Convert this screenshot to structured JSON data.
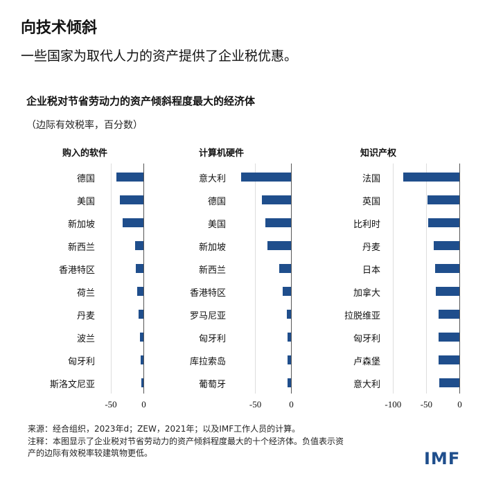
{
  "title": "向技术倾斜",
  "subtitle": "一些国家为取代人力的资产提供了企业税优惠。",
  "chart_data": [
    {
      "type": "bar",
      "orientation": "horizontal",
      "chart_title": "企业税对节省劳动力的资产倾斜程度最大的经济体",
      "unit_label": "（边际有效税率，百分数）",
      "title": "购入的软件",
      "categories": [
        "德国",
        "美国",
        "新加坡",
        "新西兰",
        "香港特区",
        "荷兰",
        "丹麦",
        "波兰",
        "匈牙利",
        "斯洛文尼亚"
      ],
      "values": [
        -41,
        -36,
        -32,
        -13,
        -12,
        -9,
        -7,
        -5,
        -4,
        -3
      ],
      "xlim": [
        -60,
        0
      ],
      "xticks": [
        "-50",
        "0"
      ],
      "xtick_values": [
        -50,
        0
      ],
      "grid": true
    },
    {
      "type": "bar",
      "orientation": "horizontal",
      "title": "计算机硬件",
      "categories": [
        "意大利",
        "德国",
        "美国",
        "新加坡",
        "新西兰",
        "香港特区",
        "罗马尼亚",
        "匈牙利",
        "库拉索岛",
        "葡萄牙"
      ],
      "values": [
        -69,
        -40,
        -36,
        -33,
        -16,
        -12,
        -6,
        -5,
        -5,
        -5
      ],
      "xlim": [
        -78,
        0
      ],
      "xticks": [
        "-50",
        "0"
      ],
      "xtick_values": [
        -50,
        0
      ],
      "grid": true
    },
    {
      "type": "bar",
      "orientation": "horizontal",
      "title": "知识产权",
      "categories": [
        "法国",
        "英国",
        "比利时",
        "丹麦",
        "日本",
        "加拿大",
        "拉脱维亚",
        "匈牙利",
        "卢森堡",
        "意大利"
      ],
      "values": [
        -84,
        -48,
        -47,
        -38,
        -36,
        -35,
        -31,
        -31,
        -31,
        -30
      ],
      "xlim": [
        -105,
        0
      ],
      "xticks": [
        "-100",
        "-50",
        "0"
      ],
      "xtick_values": [
        -100,
        -50,
        0
      ],
      "grid": true
    }
  ],
  "source": "来源：经合组织，2023年d；ZEW，2021年；以及IMF工作人员的计算。",
  "note_line1": "注释：本图显示了企业税对节省劳动力的资产倾斜程度最大的十个经济体。负值表示资",
  "note_line2": "产的边际有效税率较建筑物更低。",
  "logo": "IMF",
  "colors": {
    "bar": "#1f4e8c",
    "logo": "#1f4e8c"
  }
}
